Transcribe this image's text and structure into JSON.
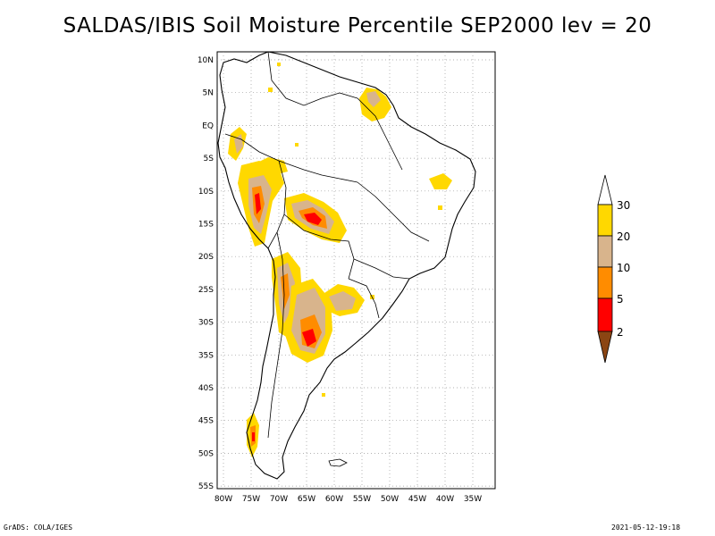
{
  "title": "SALDAS/IBIS Soil Moisture Percentile SEP2000 lev = 20",
  "footer_left": "GrADS: COLA/IGES",
  "footer_right": "2021-05-12-19:18",
  "map": {
    "lon_range": [
      -80,
      -32
    ],
    "lat_range": [
      -56,
      11
    ],
    "lon_ticks": [
      "80W",
      "75W",
      "70W",
      "65W",
      "60W",
      "55W",
      "50W",
      "45W",
      "40W",
      "35W"
    ],
    "lat_ticks": [
      "10N",
      "5N",
      "EQ",
      "5S",
      "10S",
      "15S",
      "20S",
      "25S",
      "30S",
      "35S",
      "40S",
      "45S",
      "50S",
      "55S"
    ],
    "grid": "dotted"
  },
  "legend": {
    "labels": [
      "30",
      "20",
      "10",
      "5",
      "2"
    ],
    "colors": {
      "above_30": "#ffffff",
      "20_30": "#ffd800",
      "10_20": "#d8b48c",
      "5_10": "#ff8c00",
      "2_5": "#ff0000",
      "below_2": "#8b4513"
    }
  }
}
